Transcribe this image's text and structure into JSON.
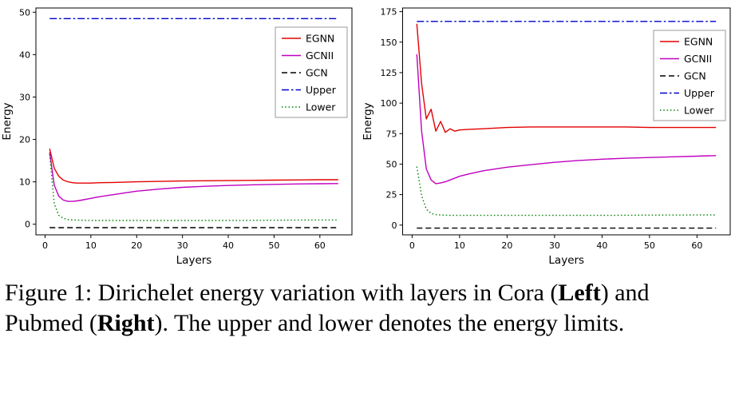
{
  "caption": {
    "parts": [
      "Figure 1: Dirichelet energy variation with layers in Cora (",
      "Left",
      ") and Pubmed (",
      "Right",
      "). The upper and lower denotes the energy limits."
    ]
  },
  "chart_data": [
    {
      "type": "line",
      "panel": "left",
      "dataset": "Cora",
      "title": "",
      "xlabel": "Layers",
      "ylabel": "Energy",
      "xlim": [
        -2,
        67
      ],
      "ylim": [
        -2.5,
        51
      ],
      "xticks": [
        0,
        10,
        20,
        30,
        40,
        50,
        60
      ],
      "yticks": [
        0,
        10,
        20,
        30,
        40,
        50
      ],
      "grid": false,
      "legend_position": "upper right",
      "legend_dy": 24,
      "series": [
        {
          "name": "EGNN",
          "color": "#e40000",
          "style": "solid",
          "x": [
            1,
            2,
            3,
            4,
            5,
            6,
            7,
            8,
            10,
            12,
            15,
            20,
            25,
            30,
            35,
            40,
            45,
            50,
            55,
            60,
            64
          ],
          "y": [
            17.8,
            13.2,
            11.3,
            10.4,
            10.0,
            9.8,
            9.7,
            9.7,
            9.7,
            9.8,
            9.85,
            10.0,
            10.1,
            10.2,
            10.25,
            10.3,
            10.35,
            10.4,
            10.45,
            10.5,
            10.5
          ]
        },
        {
          "name": "GCNII",
          "color": "#c000c0",
          "style": "solid",
          "x": [
            1,
            2,
            3,
            4,
            5,
            6,
            7,
            8,
            10,
            12,
            15,
            20,
            25,
            30,
            35,
            40,
            45,
            50,
            55,
            60,
            64
          ],
          "y": [
            17.0,
            9.2,
            6.6,
            5.7,
            5.4,
            5.4,
            5.5,
            5.7,
            6.1,
            6.5,
            7.0,
            7.8,
            8.3,
            8.7,
            8.95,
            9.15,
            9.3,
            9.4,
            9.5,
            9.55,
            9.6
          ]
        },
        {
          "name": "GCN",
          "color": "#000000",
          "style": "dashed",
          "x": [
            1,
            64
          ],
          "y": [
            -0.8,
            -0.8
          ]
        },
        {
          "name": "Upper",
          "color": "#0000cd",
          "style": "dashdot",
          "x": [
            1,
            64
          ],
          "y": [
            48.5,
            48.5
          ]
        },
        {
          "name": "Lower",
          "color": "#007f00",
          "style": "dotted",
          "x": [
            1,
            2,
            3,
            4,
            5,
            6,
            8,
            10,
            15,
            20,
            30,
            40,
            50,
            60,
            64
          ],
          "y": [
            16.5,
            4.8,
            2.1,
            1.4,
            1.1,
            1.0,
            0.95,
            0.9,
            0.9,
            0.9,
            0.9,
            0.9,
            0.95,
            1.0,
            1.0
          ]
        }
      ]
    },
    {
      "type": "line",
      "panel": "right",
      "dataset": "Pubmed",
      "title": "",
      "xlabel": "Layers",
      "ylabel": "Energy",
      "xlim": [
        -2,
        67
      ],
      "ylim": [
        -8,
        178
      ],
      "xticks": [
        0,
        10,
        20,
        30,
        40,
        50,
        60
      ],
      "yticks": [
        0,
        25,
        50,
        75,
        100,
        125,
        150,
        175
      ],
      "grid": false,
      "legend_position": "upper right",
      "legend_dy": 28,
      "series": [
        {
          "name": "EGNN",
          "color": "#e40000",
          "style": "solid",
          "x": [
            1,
            2,
            3,
            4,
            5,
            6,
            7,
            8,
            9,
            10,
            12,
            15,
            20,
            25,
            30,
            35,
            40,
            45,
            50,
            55,
            60,
            64
          ],
          "y": [
            165,
            116,
            87,
            95,
            77,
            85,
            76,
            79,
            77,
            78,
            78.5,
            79,
            80,
            80.5,
            80.5,
            80.5,
            80.5,
            80.5,
            80,
            80,
            80,
            80
          ]
        },
        {
          "name": "GCNII",
          "color": "#c000c0",
          "style": "solid",
          "x": [
            1,
            2,
            3,
            4,
            5,
            6,
            7,
            8,
            10,
            12,
            15,
            20,
            25,
            30,
            35,
            40,
            45,
            50,
            55,
            60,
            64
          ],
          "y": [
            140,
            77,
            46,
            37,
            34,
            34.5,
            35.5,
            37,
            40,
            42,
            44.5,
            47.5,
            49.5,
            51.5,
            53,
            54,
            54.8,
            55.4,
            56,
            56.5,
            57
          ]
        },
        {
          "name": "GCN",
          "color": "#000000",
          "style": "dashed",
          "x": [
            1,
            64
          ],
          "y": [
            -2.5,
            -2.5
          ]
        },
        {
          "name": "Upper",
          "color": "#0000cd",
          "style": "dashdot",
          "x": [
            1,
            64
          ],
          "y": [
            167,
            167
          ]
        },
        {
          "name": "Lower",
          "color": "#007f00",
          "style": "dotted",
          "x": [
            1,
            2,
            3,
            4,
            5,
            6,
            8,
            10,
            15,
            20,
            30,
            40,
            50,
            60,
            64
          ],
          "y": [
            48,
            24,
            13,
            9.5,
            8.6,
            8.3,
            8.0,
            8.0,
            8.0,
            8.0,
            8.0,
            8.0,
            8.2,
            8.3,
            8.3
          ]
        }
      ]
    }
  ]
}
